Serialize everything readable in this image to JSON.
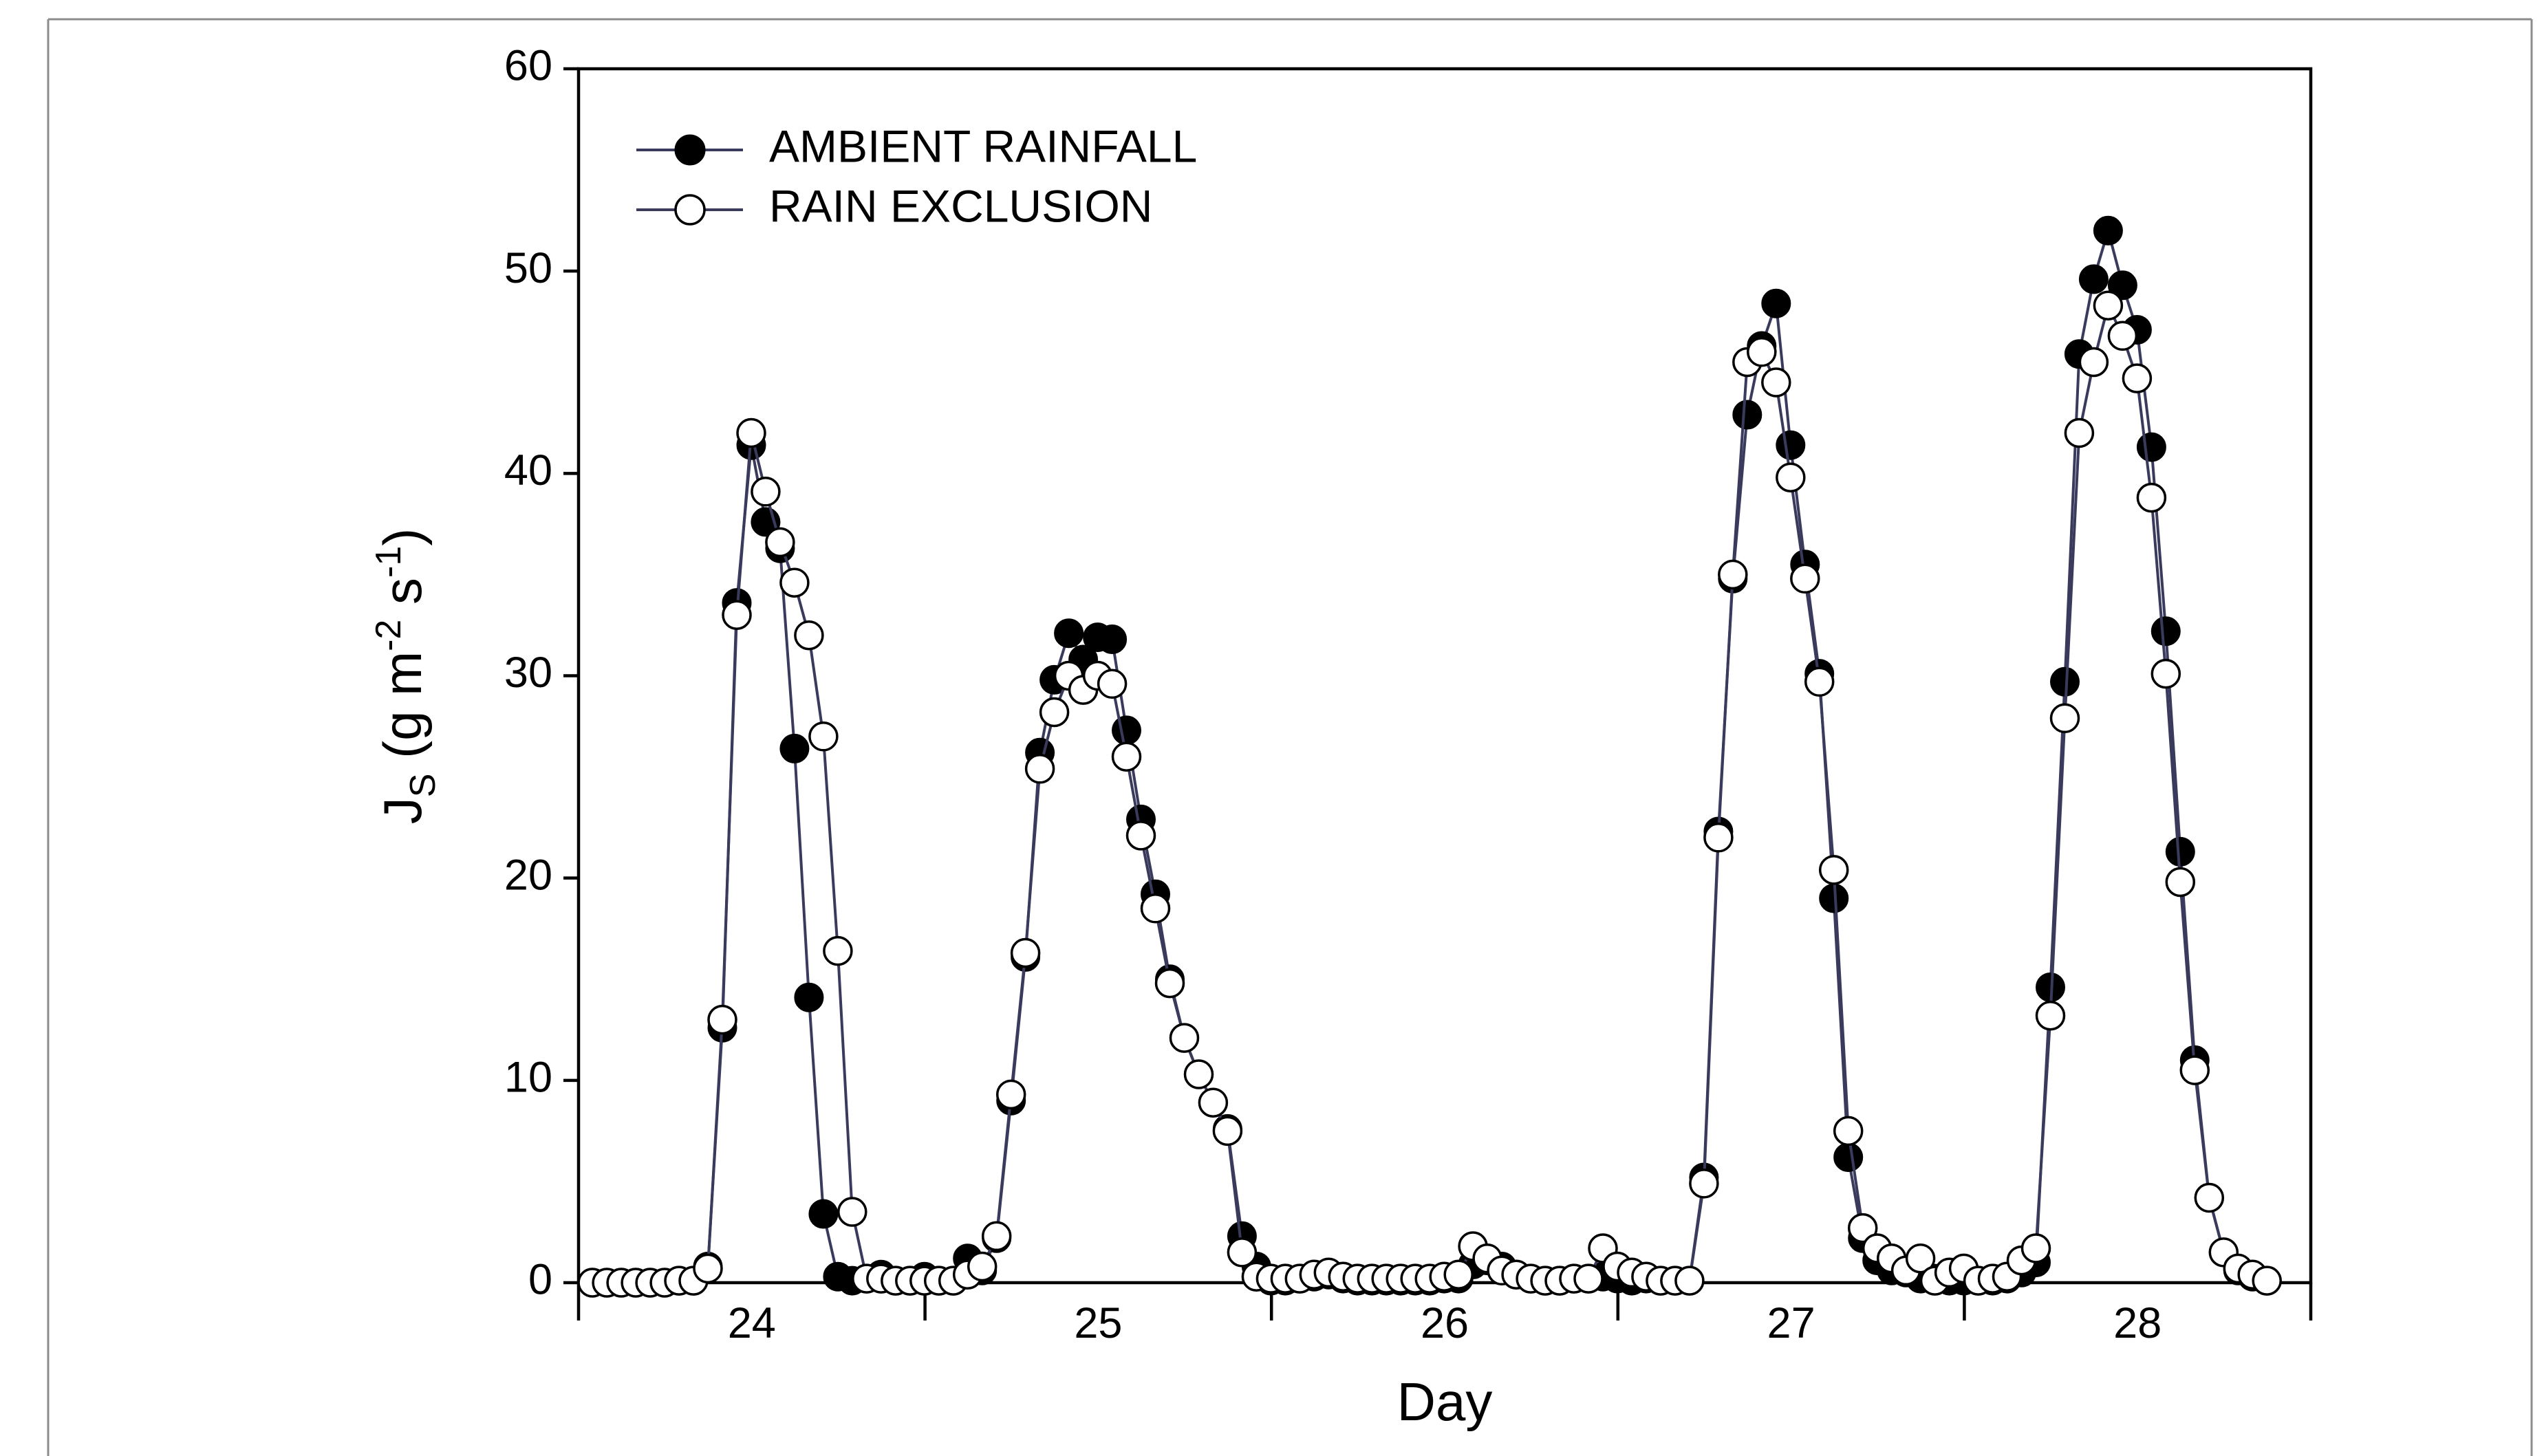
{
  "chart_data": {
    "type": "scatter",
    "title": "",
    "xlabel": "Day",
    "ylabel_main": "J",
    "ylabel_sub": "S",
    "ylabel_open": " (g m",
    "ylabel_exp1": "-2",
    "ylabel_mid": " s",
    "ylabel_exp2": "-1",
    "ylabel_close": ")",
    "xlim": [
      23.5,
      28.5
    ],
    "ylim": [
      0,
      60
    ],
    "xticks": [
      23.5,
      24.5,
      25.5,
      26.5,
      27.5,
      28.5
    ],
    "xtick_labels": [
      {
        "x": 24,
        "label": "24"
      },
      {
        "x": 25,
        "label": "25"
      },
      {
        "x": 26,
        "label": "26"
      },
      {
        "x": 27,
        "label": "27"
      },
      {
        "x": 28,
        "label": "28"
      }
    ],
    "yticks": [
      0,
      10,
      20,
      30,
      40,
      50,
      60
    ],
    "ytick_labels": [
      "0",
      "10",
      "20",
      "30",
      "40",
      "50",
      "60"
    ],
    "grid": false,
    "legend_position": "top-left",
    "x_step_days": 0.041667,
    "series": [
      {
        "name": "AMBIENT RAINFALL",
        "marker": "filled-circle",
        "color": "#000000",
        "line_color": "#3a3a5c",
        "x_start": 23.54,
        "values": [
          0,
          0,
          0,
          0,
          0,
          0,
          0.1,
          0.1,
          0.8,
          12.6,
          33.6,
          41.4,
          37.6,
          36.3,
          26.4,
          14.1,
          3.4,
          0.3,
          0.1,
          0.2,
          0.4,
          0.1,
          0.1,
          0.3,
          0.1,
          0.1,
          1.2,
          0.6,
          2.2,
          9.0,
          16.1,
          26.2,
          29.8,
          32.1,
          30.8,
          31.9,
          31.8,
          27.3,
          22.9,
          19.2,
          15.0,
          12.1,
          10.3,
          8.9,
          7.6,
          2.3,
          0.8,
          0.1,
          0.1,
          0.2,
          0.3,
          0.4,
          0.2,
          0.1,
          0.1,
          0.1,
          0.1,
          0.1,
          0.1,
          0.2,
          0.2,
          0.9,
          1.1,
          0.8,
          0.4,
          0.2,
          0.1,
          0.1,
          0.2,
          0.2,
          0.3,
          0.2,
          0.1,
          0.2,
          0.1,
          0.1,
          0.1,
          5.2,
          22.3,
          34.8,
          42.9,
          46.3,
          48.4,
          41.4,
          35.5,
          30.1,
          19.0,
          6.2,
          2.2,
          1.1,
          0.6,
          0.5,
          0.2,
          0.2,
          0.1,
          0.1,
          0.1,
          0.1,
          0.2,
          0.5,
          1.0,
          14.6,
          29.7,
          45.9,
          49.6,
          52.0,
          49.3,
          47.1,
          41.3,
          32.2,
          21.3,
          11.0,
          4.2,
          1.5,
          0.6,
          0.3,
          0.1
        ]
      },
      {
        "name": "RAIN EXCLUSION",
        "marker": "open-circle",
        "color": "#000000",
        "line_color": "#3a3a5c",
        "x_start": 23.54,
        "values": [
          0,
          0,
          0,
          0,
          0,
          0,
          0.1,
          0.1,
          0.7,
          13.0,
          33.0,
          42.0,
          39.1,
          36.6,
          34.6,
          32.0,
          27.0,
          16.4,
          3.5,
          0.2,
          0.2,
          0.1,
          0.1,
          0.1,
          0.1,
          0.1,
          0.4,
          0.8,
          2.3,
          9.3,
          16.3,
          25.4,
          28.2,
          30.0,
          29.3,
          30.0,
          29.6,
          26.0,
          22.1,
          18.5,
          14.8,
          12.1,
          10.3,
          8.9,
          7.5,
          1.5,
          0.3,
          0.2,
          0.2,
          0.2,
          0.4,
          0.5,
          0.3,
          0.2,
          0.2,
          0.2,
          0.2,
          0.2,
          0.2,
          0.3,
          0.4,
          1.8,
          1.2,
          0.6,
          0.4,
          0.2,
          0.1,
          0.1,
          0.2,
          0.2,
          1.7,
          0.8,
          0.5,
          0.3,
          0.1,
          0.1,
          0.1,
          4.9,
          22.0,
          35.0,
          45.5,
          46.0,
          44.5,
          39.8,
          34.8,
          29.7,
          20.4,
          7.5,
          2.7,
          1.7,
          1.2,
          0.6,
          1.2,
          0.1,
          0.5,
          0.7,
          0.1,
          0.2,
          0.3,
          1.1,
          1.7,
          13.2,
          27.9,
          42.0,
          45.5,
          48.3,
          46.8,
          44.7,
          38.8,
          30.1,
          19.8,
          10.5,
          4.2,
          1.5,
          0.7,
          0.4,
          0.1
        ]
      }
    ]
  }
}
